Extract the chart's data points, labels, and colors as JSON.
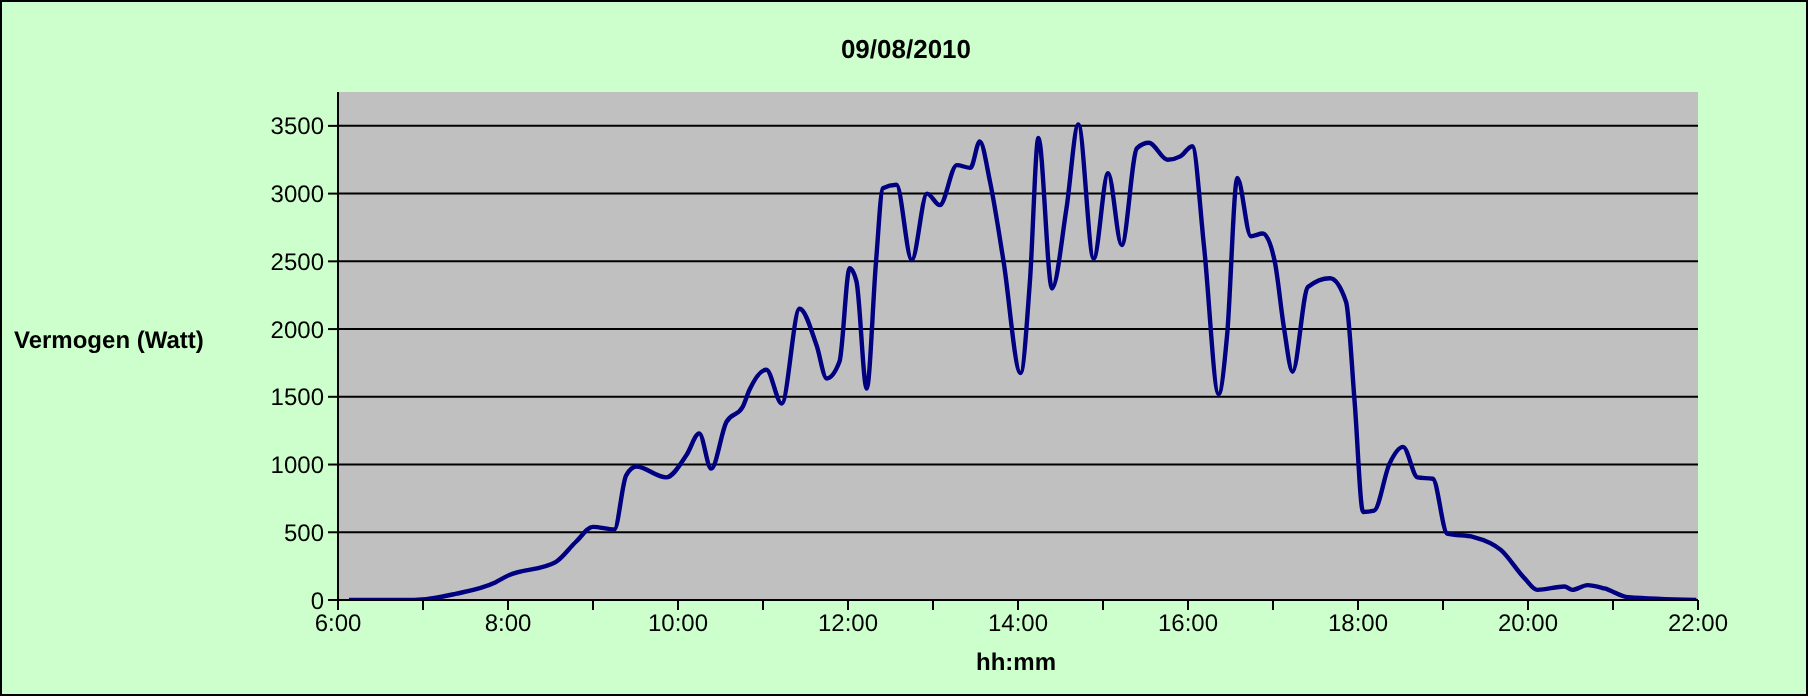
{
  "chart_data": {
    "type": "line",
    "title": "09/08/2010",
    "xlabel": "hh:mm",
    "ylabel": "Vermogen (Watt)",
    "x": [
      6.13,
      6.9,
      7.38,
      7.85,
      8.0,
      8.56,
      8.8,
      9.0,
      9.25,
      9.39,
      9.51,
      9.86,
      10.1,
      10.25,
      10.39,
      10.57,
      10.76,
      10.84,
      11.04,
      11.22,
      11.43,
      11.63,
      11.75,
      11.9,
      12.02,
      12.1,
      12.22,
      12.33,
      12.41,
      12.57,
      12.75,
      12.93,
      13.08,
      13.28,
      13.44,
      13.55,
      13.67,
      13.83,
      14.03,
      14.14,
      14.24,
      14.4,
      14.57,
      14.71,
      14.89,
      15.06,
      15.22,
      15.4,
      15.54,
      15.76,
      15.91,
      16.05,
      16.19,
      16.36,
      16.46,
      16.58,
      16.74,
      16.88,
      17.02,
      17.13,
      17.23,
      17.41,
      17.67,
      17.86,
      17.96,
      18.06,
      18.19,
      18.37,
      18.53,
      18.7,
      18.88,
      19.05,
      19.36,
      19.68,
      19.96,
      20.11,
      20.43,
      20.52,
      20.7,
      20.9,
      21.18,
      21.98
    ],
    "series": [
      {
        "color": "#000080",
        "values": [
          0,
          0,
          45,
          130,
          180,
          280,
          430,
          540,
          520,
          920,
          985,
          905,
          1070,
          1230,
          970,
          1315,
          1425,
          1550,
          1700,
          1450,
          2150,
          1880,
          1635,
          1760,
          2450,
          2350,
          1560,
          2500,
          3040,
          3065,
          2510,
          3000,
          2915,
          3210,
          3190,
          3385,
          3090,
          2500,
          1675,
          2350,
          3410,
          2300,
          2890,
          3510,
          2520,
          3150,
          2620,
          3335,
          3375,
          3250,
          3275,
          3350,
          2600,
          1520,
          1955,
          3115,
          2685,
          2705,
          2500,
          2005,
          1685,
          2310,
          2375,
          2200,
          1465,
          650,
          660,
          1005,
          1130,
          905,
          895,
          490,
          465,
          370,
          160,
          75,
          100,
          75,
          110,
          85,
          20,
          0
        ]
      }
    ],
    "xlim": [
      6,
      22
    ],
    "xticks": [
      {
        "value": 6,
        "label": "6:00"
      },
      {
        "value": 7,
        "label": null
      },
      {
        "value": 8,
        "label": "8:00"
      },
      {
        "value": 9,
        "label": null
      },
      {
        "value": 10,
        "label": "10:00"
      },
      {
        "value": 11,
        "label": null
      },
      {
        "value": 12,
        "label": "12:00"
      },
      {
        "value": 13,
        "label": null
      },
      {
        "value": 14,
        "label": "14:00"
      },
      {
        "value": 15,
        "label": null
      },
      {
        "value": 16,
        "label": "16:00"
      },
      {
        "value": 17,
        "label": null
      },
      {
        "value": 18,
        "label": "18:00"
      },
      {
        "value": 19,
        "label": null
      },
      {
        "value": 20,
        "label": "20:00"
      },
      {
        "value": 21,
        "label": null
      },
      {
        "value": 22,
        "label": "22:00"
      }
    ],
    "ylim": [
      0,
      3750
    ],
    "yticks": [
      0,
      500,
      1000,
      1500,
      2000,
      2500,
      3000,
      3500
    ],
    "grid": "y",
    "legend": false,
    "marker": "none",
    "line_style": "solid"
  }
}
